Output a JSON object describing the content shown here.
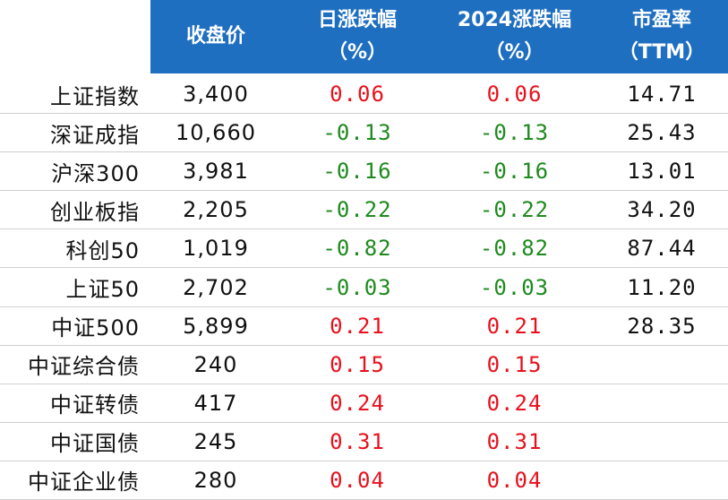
{
  "header": {
    "close": "收盘价",
    "daily_line1": "日涨跌幅",
    "daily_line2": "（%）",
    "ytd_line1": "2024涨跌幅",
    "ytd_line2": "（%）",
    "pe_line1": "市盈率",
    "pe_line2": "（TTM）"
  },
  "colors": {
    "header_bg": "#1f6fc1",
    "up": "#e8101c",
    "down": "#1e8a1e"
  },
  "rows": [
    {
      "name": "上证指数",
      "close": "3,400",
      "daily": "0.06",
      "ytd": "0.06",
      "pe": "14.71",
      "dir": "up"
    },
    {
      "name": "深证成指",
      "close": "10,660",
      "daily": "-0.13",
      "ytd": "-0.13",
      "pe": "25.43",
      "dir": "down"
    },
    {
      "name": "沪深300",
      "close": "3,981",
      "daily": "-0.16",
      "ytd": "-0.16",
      "pe": "13.01",
      "dir": "down"
    },
    {
      "name": "创业板指",
      "close": "2,205",
      "daily": "-0.22",
      "ytd": "-0.22",
      "pe": "34.20",
      "dir": "down"
    },
    {
      "name": "科创50",
      "close": "1,019",
      "daily": "-0.82",
      "ytd": "-0.82",
      "pe": "87.44",
      "dir": "down"
    },
    {
      "name": "上证50",
      "close": "2,702",
      "daily": "-0.03",
      "ytd": "-0.03",
      "pe": "11.20",
      "dir": "down"
    },
    {
      "name": "中证500",
      "close": "5,899",
      "daily": "0.21",
      "ytd": "0.21",
      "pe": "28.35",
      "dir": "up"
    },
    {
      "name": "中证综合债",
      "close": "240",
      "daily": "0.15",
      "ytd": "0.15",
      "pe": "",
      "dir": "up"
    },
    {
      "name": "中证转债",
      "close": "417",
      "daily": "0.24",
      "ytd": "0.24",
      "pe": "",
      "dir": "up"
    },
    {
      "name": "中证国债",
      "close": "245",
      "daily": "0.31",
      "ytd": "0.31",
      "pe": "",
      "dir": "up"
    },
    {
      "name": "中证企业债",
      "close": "280",
      "daily": "0.04",
      "ytd": "0.04",
      "pe": "",
      "dir": "up"
    }
  ]
}
